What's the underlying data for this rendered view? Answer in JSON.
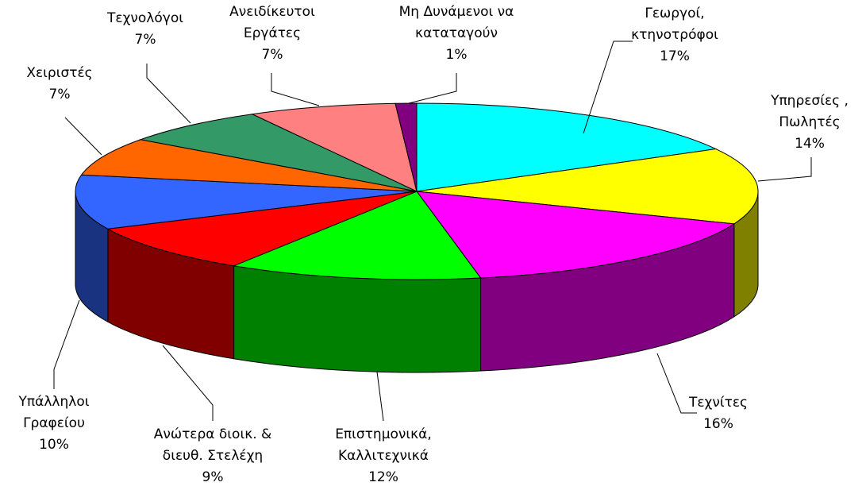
{
  "chart_data": {
    "type": "pie3d",
    "categories": [
      "Γεωργοί,\nκτηνοτρόφοι",
      "Υπηρεσίες ,\nΠωλητές",
      "Τεχνίτες",
      "Επιστημονικά,\nΚαλλιτεχνικά",
      "Ανώτερα διοικ. &\nδιευθ. Στελέχη",
      "Υπάλληλοι\nΓραφείου",
      "Χειριστές",
      "Τεχνολόγοι",
      "Ανειδίκευτοι\nΕργάτες",
      "Μη Δυνάμενοι να\nκαταταγούν"
    ],
    "values": [
      17,
      14,
      16,
      12,
      9,
      10,
      7,
      7,
      7,
      1
    ],
    "value_labels": [
      "17%",
      "14%",
      "16%",
      "12%",
      "9%",
      "10%",
      "7%",
      "7%",
      "7%",
      "1%"
    ],
    "colors": [
      "#00ffff",
      "#ffff00",
      "#ff00ff",
      "#00ff00",
      "#ff0000",
      "#3366ff",
      "#ff6600",
      "#339966",
      "#ff8080",
      "#800080"
    ]
  }
}
